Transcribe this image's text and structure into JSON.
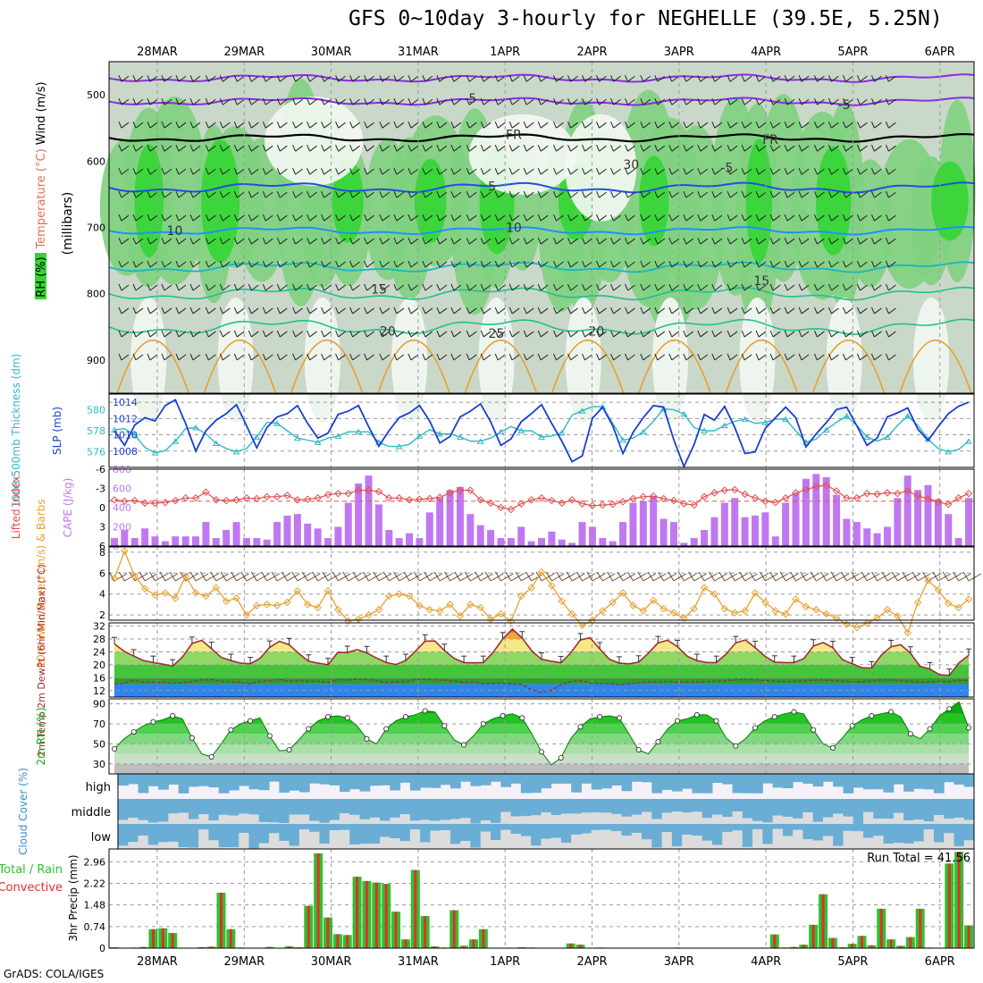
{
  "title": "GFS 0~10day 3-hourly for NEGHELLE (39.5E, 5.25N)",
  "credit": "GrADS: COLA/IGES",
  "colors": {
    "rh_light": "#dfe9df",
    "rh_mid": "#c9d8c9",
    "rh_green1": "#7fd27f",
    "rh_green2": "#34d634",
    "rh_green3": "#12b812",
    "isotherm_violet": "#8a2be2",
    "isotherm_blue": "#1f4fe0",
    "isotherm_sky": "#1e90ff",
    "isotherm_cyan": "#17b5c8",
    "isotherm_teal": "#20c090",
    "isotherm_orange": "#e8a030",
    "slp": "#1a3fcf",
    "thickness": "#30b8c8",
    "cape": "#c078f0",
    "lifted": "#e05050",
    "wind10m": "#e8a030",
    "temp_line": "#a03030",
    "dew_line": "#804040",
    "rh2m": "#20c020",
    "cloud": "#6aaed6",
    "precip_total": "#30c030",
    "precip_conv": "#e03030"
  },
  "chart_data": [
    {
      "type": "heatmap",
      "panel": "upper-air",
      "ylabel_title_parts": [
        "RH (%)",
        "Temperature (°C)",
        "Wind (m/s)"
      ],
      "ylabel": "(millibars)",
      "yticks": [
        500,
        600,
        700,
        800,
        900
      ],
      "ylim": [
        450,
        950
      ],
      "x_dates": [
        "28MAR",
        "29MAR",
        "30MAR",
        "31MAR",
        "1APR",
        "2APR",
        "3APR",
        "4APR",
        "5APR",
        "6APR"
      ],
      "isotherm_labels": [
        {
          "text": "-5",
          "level": 505,
          "day": 3.6
        },
        {
          "text": "-5",
          "level": 515,
          "day": 7.9
        },
        {
          "text": "FR",
          "level": 560,
          "day": 4.1
        },
        {
          "text": "FR",
          "level": 567,
          "day": 7.05
        },
        {
          "text": "30",
          "level": 605,
          "day": 5.45
        },
        {
          "text": "-5",
          "level": 610,
          "day": 6.55
        },
        {
          "text": "5",
          "level": 638,
          "day": 3.85
        },
        {
          "text": "10",
          "level": 705,
          "day": 0.2
        },
        {
          "text": "10",
          "level": 700,
          "day": 4.1
        },
        {
          "text": "15",
          "level": 793,
          "day": 2.55
        },
        {
          "text": "15",
          "level": 780,
          "day": 6.95
        },
        {
          "text": "20",
          "level": 856,
          "day": 2.65
        },
        {
          "text": "20",
          "level": 856,
          "day": 5.05
        },
        {
          "text": "25",
          "level": 860,
          "day": 3.9
        }
      ]
    },
    {
      "type": "line",
      "panel": "slp-thickness",
      "ylabel_left": "1000-500mb Thickness (dm)",
      "ylabel_right": "SLP (mb)",
      "yticks_left": [
        576,
        578,
        580
      ],
      "yticks_right": [
        1008,
        1010,
        1012,
        1014
      ],
      "series": [
        {
          "label": "SLP",
          "axis": "right",
          "values": [
            1010.5,
            1008.7,
            1011.2,
            1012.1,
            1011.7,
            1013.6,
            1014.3,
            1011.4,
            1008.0,
            1010.5,
            1011.8,
            1012.6,
            1013.7,
            1011.1,
            1008.4,
            1010.9,
            1012.2,
            1012.6,
            1013.6,
            1011.4,
            1009.6,
            1010.2,
            1012.5,
            1012.9,
            1013.6,
            1011.0,
            1008.6,
            1010.5,
            1012.1,
            1012.7,
            1013.6,
            1011.7,
            1009.0,
            1009.8,
            1012.2,
            1012.9,
            1013.8,
            1011.6,
            1008.7,
            1009.5,
            1011.6,
            1012.6,
            1013.7,
            1011.4,
            1009.2,
            1006.7,
            1007.4,
            1012.0,
            1013.4,
            1011.1,
            1007.7,
            1010.3,
            1012.1,
            1013.6,
            1013.4,
            1009.4,
            1006.1,
            1008.8,
            1012.5,
            1011.8,
            1013.5,
            1010.9,
            1007.7,
            1007.9,
            1010.8,
            1012.1,
            1013.4,
            1012.1,
            1008.5,
            1010.1,
            1011.5,
            1013.1,
            1013.4,
            1011.1,
            1008.7,
            1009.6,
            1012.2,
            1012.7,
            1013.3,
            1010.7,
            1009.3,
            1011.0,
            1012.6,
            1013.5,
            1014.0
          ]
        },
        {
          "label": "Thickness",
          "axis": "left",
          "values": [
            578.1,
            578.2,
            577.6,
            576.4,
            575.9,
            576.1,
            577.0,
            578.2,
            578.3,
            577.7,
            576.8,
            576.3,
            576.0,
            576.3,
            577.4,
            578.8,
            578.7,
            578.0,
            577.3,
            577.1,
            576.9,
            577.3,
            577.5,
            577.9,
            577.9,
            577.9,
            576.9,
            576.5,
            576.5,
            576.7,
            577.5,
            578.1,
            577.7,
            577.7,
            577.4,
            577.0,
            577.0,
            577.3,
            577.9,
            578.4,
            578.0,
            578.0,
            577.4,
            577.5,
            577.8,
            579.5,
            579.9,
            580.3,
            580.3,
            578.7,
            577.1,
            577.3,
            577.9,
            578.9,
            580.1,
            580.0,
            579.6,
            578.3,
            578.0,
            578.0,
            578.5,
            578.9,
            579.1,
            578.7,
            578.8,
            579.1,
            579.1,
            578.0,
            576.9,
            577.2,
            578.1,
            578.8,
            579.4,
            578.5,
            577.4,
            577.0,
            577.4,
            578.5,
            579.4,
            578.5,
            577.2,
            576.3,
            576.0,
            576.2,
            577.0
          ]
        }
      ]
    },
    {
      "type": "bar",
      "panel": "cape-li",
      "ylabel_left": "Lifted Index",
      "ylabel_right": "CAPE (J/kg)",
      "yticks_left": [
        -6,
        -3,
        0,
        3,
        6
      ],
      "yticks_right": [
        0,
        200,
        400,
        600,
        800
      ],
      "series": [
        {
          "label": "CAPE",
          "values": [
            83,
            167,
            83,
            183,
            100,
            50,
            100,
            100,
            100,
            250,
            83,
            167,
            250,
            83,
            83,
            67,
            250,
            316,
            333,
            233,
            183,
            83,
            200,
            450,
            650,
            733,
            433,
            167,
            83,
            133,
            83,
            350,
            500,
            583,
            616,
            333,
            217,
            167,
            83,
            83,
            200,
            50,
            83,
            150,
            67,
            33,
            250,
            200,
            83,
            50,
            250,
            450,
            467,
            516,
            283,
            250,
            33,
            83,
            167,
            300,
            450,
            500,
            300,
            317,
            350,
            100,
            450,
            550,
            700,
            750,
            716,
            533,
            283,
            250,
            183,
            133,
            200,
            500,
            733,
            583,
            633,
            483,
            333,
            83,
            500
          ]
        },
        {
          "label": "Lifted Index",
          "values": [
            -1.2,
            -1.0,
            -1.1,
            -0.7,
            -0.7,
            -0.8,
            -1.1,
            -1.5,
            -1.5,
            -2.4,
            -1.2,
            -1.1,
            -1.2,
            -1.5,
            -1.4,
            -1.7,
            -1.7,
            -1.9,
            -1.2,
            -1.3,
            -1.5,
            -2.0,
            -2.2,
            -2.2,
            -2.7,
            -2.7,
            -2.5,
            -1.5,
            -1.5,
            -1.2,
            -1.3,
            -1.4,
            -1.6,
            -2.3,
            -2.7,
            -2.7,
            -1.2,
            -0.7,
            0.0,
            0.3,
            -0.6,
            -1.2,
            -1.5,
            -1.1,
            -0.7,
            -1.2,
            -0.6,
            -0.3,
            -0.4,
            -0.5,
            -0.9,
            -1.4,
            -1.7,
            -1.8,
            -1.4,
            -1.1,
            -0.6,
            -0.4,
            -1.7,
            -2.3,
            -2.7,
            -2.8,
            -2.1,
            -1.5,
            -1.0,
            -0.8,
            -1.5,
            -2.3,
            -2.8,
            -3.3,
            -3.5,
            -2.6,
            -1.5,
            -1.5,
            -2.2,
            -2.1,
            -2.3,
            -2.2,
            -2.6,
            -1.8,
            -1.4,
            -0.9,
            -0.5,
            -1.5,
            -2.2
          ]
        }
      ]
    },
    {
      "type": "line",
      "panel": "wind10m",
      "ylabel": "10m Wind Speed (m/s) & Barbs",
      "yticks": [
        2,
        4,
        6,
        8
      ],
      "series": [
        {
          "label": "Speed",
          "values": [
            5.5,
            8.1,
            5.7,
            4.5,
            3.9,
            4.1,
            3.6,
            5.7,
            4.1,
            3.8,
            4.6,
            3.3,
            3.6,
            2.0,
            2.9,
            3.0,
            2.9,
            3.2,
            4.3,
            3.0,
            2.7,
            4.3,
            2.5,
            1.4,
            1.6,
            2.0,
            2.5,
            3.8,
            4.0,
            3.8,
            2.9,
            2.5,
            2.4,
            3.0,
            1.9,
            3.0,
            2.7,
            1.6,
            2.1,
            1.4,
            3.8,
            4.6,
            6.1,
            4.8,
            3.3,
            2.1,
            1.0,
            1.5,
            2.4,
            3.2,
            4.1,
            2.9,
            2.4,
            3.4,
            2.6,
            2.2,
            1.7,
            2.6,
            4.6,
            4.0,
            2.6,
            2.2,
            2.4,
            4.1,
            3.2,
            2.4,
            2.1,
            3.5,
            2.8,
            2.5,
            2.1,
            1.7,
            1.1,
            0.8,
            1.2,
            1.7,
            2.5,
            1.9,
            0.3,
            3.2,
            5.3,
            4.4,
            3.1,
            2.7,
            3.5
          ]
        }
      ]
    },
    {
      "type": "area",
      "panel": "temp2m",
      "ylabel": "2m Temp 2m DewPt (6hr Min/Max) (°C)",
      "yticks": [
        12,
        16,
        20,
        24,
        28,
        32
      ],
      "series": [
        {
          "label": "Temp",
          "values": [
            26.5,
            24.2,
            22.7,
            21.3,
            20.7,
            20.2,
            19.6,
            22.4,
            26.6,
            27.6,
            25.0,
            22.3,
            21.3,
            20.5,
            20.3,
            22.0,
            25.4,
            27.3,
            26.2,
            23.5,
            21.1,
            20.5,
            20.0,
            23.8,
            23.8,
            24.7,
            23.7,
            22.1,
            20.7,
            20.1,
            21.3,
            24.2,
            27.3,
            27.4,
            24.4,
            22.0,
            20.7,
            20.6,
            20.7,
            23.8,
            28.0,
            31.1,
            28.3,
            24.3,
            21.7,
            21.1,
            20.6,
            23.7,
            27.7,
            28.4,
            24.9,
            21.7,
            20.5,
            20.3,
            20.8,
            23.6,
            26.8,
            27.6,
            25.6,
            22.7,
            21.3,
            20.7,
            20.7,
            23.3,
            26.8,
            27.7,
            25.3,
            22.7,
            20.8,
            20.7,
            20.7,
            21.9,
            25.8,
            26.9,
            25.3,
            21.6,
            20.3,
            19.1,
            19.0,
            23.0,
            25.6,
            26.2,
            23.6,
            19.5,
            18.7,
            16.9,
            16.7,
            20.6,
            22.9
          ]
        },
        {
          "label": "DewPt",
          "values": [
            14.1,
            14.2,
            15.2,
            14.6,
            14.6,
            14.5,
            14.3,
            14.4,
            14.7,
            15.3,
            15.4,
            14.9,
            14.7,
            14.6,
            14.1,
            14.9,
            15.1,
            15.4,
            14.9,
            15.1,
            14.9,
            14.9,
            14.6,
            15.4,
            15.2,
            15.6,
            15.4,
            15.1,
            14.5,
            14.7,
            14.7,
            15.4,
            15.6,
            15.3,
            15.2,
            15.0,
            14.5,
            14.7,
            14.1,
            14.2,
            14.3,
            14.1,
            13.9,
            12.2,
            11.5,
            12.1,
            13.8,
            14.8,
            15.1,
            14.4,
            14.1,
            14.2,
            13.8,
            14.1,
            14.4,
            14.7,
            14.6,
            14.9,
            14.6,
            14.7,
            14.6,
            14.8,
            14.9,
            15.1,
            15.3,
            15.4,
            15.3,
            15.1,
            15.0,
            14.8,
            14.9,
            15.0,
            15.2,
            15.3,
            15.1,
            15.0,
            14.8,
            14.7,
            15.0,
            15.3,
            15.3,
            15.1,
            14.9,
            14.6,
            14.7,
            14.9,
            14.8,
            15.2,
            15.1
          ]
        }
      ]
    },
    {
      "type": "area",
      "panel": "rh2m",
      "ylabel": "2m RH (%)",
      "yticks": [
        30,
        50,
        70,
        90
      ],
      "series": [
        {
          "label": "RH",
          "values": [
            45,
            55,
            62,
            68,
            72,
            74,
            78,
            75,
            56,
            40,
            37,
            50,
            64,
            70,
            73,
            76,
            58,
            43,
            44,
            54,
            65,
            73,
            77,
            78,
            76,
            68,
            55,
            50,
            65,
            73,
            77,
            79,
            83,
            82,
            68,
            54,
            49,
            58,
            70,
            75,
            78,
            80,
            76,
            60,
            42,
            29,
            36,
            55,
            67,
            75,
            77,
            78,
            76,
            60,
            44,
            40,
            52,
            65,
            73,
            75,
            79,
            79,
            73,
            56,
            48,
            55,
            66,
            73,
            77,
            80,
            82,
            80,
            64,
            50,
            46,
            56,
            68,
            74,
            78,
            80,
            82,
            77,
            60,
            55,
            65,
            78,
            85,
            92,
            66
          ]
        }
      ]
    },
    {
      "type": "heatmap",
      "panel": "cloud",
      "ylabel": "Cloud Cover (%)",
      "rows": [
        "high",
        "middle",
        "low"
      ]
    },
    {
      "type": "bar",
      "panel": "precip",
      "ylabel": "3hr Precip (mm)",
      "legend_parts": [
        "Total / Rain",
        "Convective"
      ],
      "annotation": "Run Total = 41.56",
      "yticks": [
        "0",
        "0.74",
        "1.48",
        "2.22",
        "2.96"
      ],
      "series": [
        {
          "label": "Total",
          "values": [
            0.03,
            0.01,
            0.02,
            0.04,
            0.65,
            0.68,
            0.52,
            0,
            0,
            0.03,
            0.05,
            1.9,
            0.65,
            0.02,
            0,
            0.01,
            0.04,
            0,
            0.06,
            0.03,
            1.45,
            3.25,
            1.05,
            0.48,
            0.45,
            2.45,
            2.3,
            2.25,
            2.2,
            1.25,
            0.3,
            2.68,
            1.1,
            0.06,
            0.02,
            1.3,
            0.08,
            0.3,
            0.65,
            0,
            0,
            0,
            0.03,
            0.02,
            0,
            0,
            0,
            0.16,
            0.12,
            0,
            0.02,
            0,
            0.01,
            0.01,
            0,
            0,
            0,
            0,
            0.02,
            0.01,
            0,
            0,
            0,
            0,
            0,
            0,
            0,
            0,
            0.47,
            0.02,
            0.04,
            0.12,
            0.8,
            1.85,
            0.35,
            0.03,
            0.15,
            0.42,
            0.1,
            1.35,
            0.3,
            0.08,
            0.38,
            1.35,
            0.02,
            0,
            2.9,
            3.3,
            0.78
          ]
        }
      ]
    }
  ]
}
